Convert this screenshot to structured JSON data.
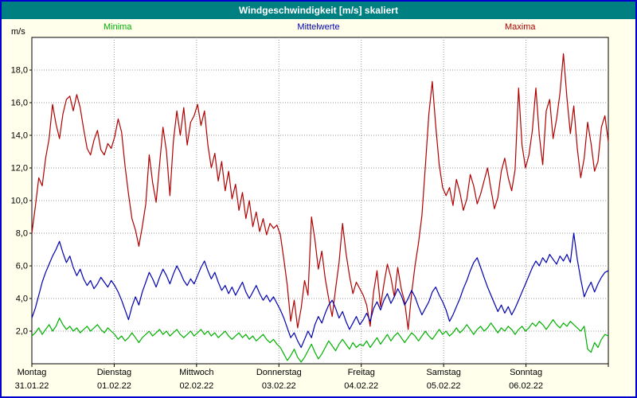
{
  "title": "Windgeschwindigkeit [m/s] skaliert",
  "unit_label": "m/s",
  "legend": [
    {
      "label": "Minima",
      "color": "#00b000"
    },
    {
      "label": "Mittelwerte",
      "color": "#0000b0"
    },
    {
      "label": "Maxima",
      "color": "#b00000"
    }
  ],
  "colors": {
    "titlebar": "#008080",
    "frame_border": "#0000cc",
    "background": "#ffffec",
    "plot_background": "#ffffff",
    "grid": "#9a9a9a",
    "axis": "#000000"
  },
  "chart_data": {
    "type": "line",
    "title": "Windgeschwindigkeit [m/s] skaliert",
    "ylabel": "m/s",
    "xlabel": "",
    "ylim": [
      0,
      20
    ],
    "grid": true,
    "legend_position": "top",
    "y_ticks": {
      "values": [
        2,
        4,
        6,
        8,
        10,
        12,
        14,
        16,
        18
      ],
      "labels": [
        "2,0",
        "4,0",
        "6,0",
        "8,0",
        "10,0",
        "12,0",
        "14,0",
        "16,0",
        "18,0"
      ]
    },
    "x_days": [
      {
        "name": "Montag",
        "date": "31.01.22"
      },
      {
        "name": "Dienstag",
        "date": "01.02.22"
      },
      {
        "name": "Mittwoch",
        "date": "02.02.22"
      },
      {
        "name": "Donnerstag",
        "date": "03.02.22"
      },
      {
        "name": "Freitag",
        "date": "04.02.22"
      },
      {
        "name": "Samstag",
        "date": "05.02.22"
      },
      {
        "name": "Sonntag",
        "date": "06.02.22"
      }
    ],
    "points_per_day": 24,
    "series": [
      {
        "name": "Maxima",
        "color": "#b00000",
        "values": [
          8.0,
          9.6,
          11.4,
          10.9,
          12.6,
          13.8,
          15.9,
          14.7,
          13.8,
          15.3,
          16.2,
          16.4,
          15.5,
          16.5,
          15.7,
          14.4,
          13.2,
          12.8,
          13.7,
          14.3,
          13.1,
          12.8,
          13.5,
          13.2,
          13.9,
          15.0,
          14.2,
          12.1,
          10.4,
          8.9,
          8.2,
          7.2,
          8.4,
          9.8,
          12.8,
          11.1,
          9.9,
          12.2,
          14.5,
          13.0,
          10.3,
          13.6,
          15.5,
          14.0,
          15.7,
          13.4,
          14.8,
          15.2,
          15.9,
          14.6,
          15.5,
          13.4,
          12.0,
          12.9,
          11.2,
          12.4,
          10.6,
          11.8,
          10.1,
          11.0,
          9.4,
          10.5,
          8.9,
          10.0,
          8.4,
          9.3,
          8.1,
          8.9,
          7.9,
          8.6,
          8.3,
          8.5,
          7.9,
          6.4,
          4.8,
          2.6,
          3.9,
          2.2,
          3.4,
          5.1,
          4.2,
          9.0,
          7.6,
          5.8,
          6.9,
          5.2,
          4.0,
          2.9,
          4.6,
          6.2,
          8.6,
          6.8,
          5.4,
          4.3,
          5.0,
          4.6,
          4.2,
          3.6,
          2.3,
          4.4,
          5.7,
          3.5,
          4.9,
          6.1,
          5.3,
          4.1,
          5.9,
          4.6,
          3.8,
          2.1,
          4.3,
          6.0,
          7.4,
          9.1,
          12.1,
          15.3,
          17.3,
          14.6,
          12.2,
          10.8,
          10.3,
          10.8,
          9.7,
          11.3,
          10.5,
          9.4,
          10.1,
          11.6,
          10.9,
          9.8,
          10.4,
          11.2,
          12.0,
          10.7,
          9.5,
          10.2,
          11.8,
          12.6,
          11.4,
          10.6,
          11.9,
          16.9,
          13.4,
          12.0,
          12.8,
          14.3,
          16.9,
          14.0,
          12.2,
          15.5,
          16.2,
          13.8,
          15.0,
          16.6,
          19.0,
          16.3,
          14.1,
          15.8,
          13.2,
          11.4,
          12.6,
          14.8,
          13.5,
          11.8,
          12.4,
          14.5,
          15.2,
          13.6
        ]
      },
      {
        "name": "Mittelwerte",
        "color": "#0000b0",
        "values": [
          2.8,
          3.4,
          4.2,
          5.0,
          5.6,
          6.1,
          6.6,
          7.0,
          7.5,
          6.8,
          6.2,
          6.6,
          5.9,
          5.4,
          5.8,
          5.2,
          4.8,
          5.1,
          4.6,
          4.9,
          5.3,
          5.0,
          4.7,
          5.1,
          4.8,
          4.4,
          3.9,
          3.3,
          2.7,
          3.5,
          4.1,
          3.6,
          4.4,
          5.0,
          5.6,
          5.2,
          4.7,
          5.3,
          5.8,
          5.4,
          4.9,
          5.5,
          6.0,
          5.6,
          5.1,
          4.8,
          5.2,
          4.9,
          5.4,
          5.9,
          6.3,
          5.7,
          5.2,
          5.6,
          5.0,
          4.5,
          4.8,
          4.3,
          4.7,
          4.2,
          4.6,
          5.0,
          4.4,
          4.0,
          4.4,
          4.8,
          4.3,
          3.9,
          4.2,
          3.8,
          4.1,
          3.7,
          3.3,
          2.8,
          2.2,
          1.6,
          1.9,
          1.4,
          1.0,
          1.5,
          2.0,
          1.6,
          2.4,
          2.9,
          2.5,
          3.1,
          3.6,
          3.9,
          3.4,
          2.8,
          3.2,
          2.6,
          2.1,
          2.5,
          2.9,
          2.4,
          2.7,
          3.1,
          2.6,
          3.4,
          3.8,
          3.3,
          3.9,
          4.3,
          3.7,
          4.1,
          4.6,
          4.2,
          3.6,
          4.0,
          4.5,
          4.1,
          3.5,
          3.0,
          3.4,
          3.8,
          4.4,
          4.7,
          4.2,
          3.8,
          3.3,
          2.6,
          3.0,
          3.5,
          4.0,
          4.6,
          5.1,
          5.7,
          6.2,
          6.5,
          5.9,
          5.3,
          4.7,
          4.2,
          3.7,
          3.2,
          3.6,
          3.1,
          3.5,
          3.0,
          3.4,
          3.9,
          4.4,
          4.9,
          5.4,
          5.9,
          6.3,
          6.0,
          6.5,
          6.2,
          6.7,
          6.4,
          6.1,
          6.6,
          6.3,
          6.7,
          6.2,
          8.0,
          6.4,
          5.2,
          4.1,
          4.6,
          5.0,
          4.4,
          4.9,
          5.3,
          5.6,
          5.7
        ]
      },
      {
        "name": "Minima",
        "color": "#00b000",
        "values": [
          1.7,
          1.9,
          2.2,
          1.8,
          2.1,
          2.4,
          2.0,
          2.3,
          2.8,
          2.4,
          2.1,
          2.3,
          2.0,
          2.2,
          1.9,
          2.1,
          2.3,
          2.0,
          2.2,
          2.4,
          2.1,
          1.9,
          2.2,
          2.0,
          1.8,
          1.5,
          1.7,
          1.4,
          1.6,
          1.9,
          1.6,
          1.3,
          1.6,
          1.8,
          2.0,
          1.7,
          1.9,
          2.1,
          1.8,
          2.0,
          1.7,
          1.9,
          2.1,
          1.8,
          1.6,
          1.8,
          2.0,
          1.7,
          1.9,
          2.1,
          1.8,
          2.0,
          1.7,
          1.9,
          1.6,
          1.8,
          2.0,
          1.7,
          1.5,
          1.7,
          1.9,
          1.6,
          1.8,
          1.5,
          1.7,
          1.4,
          1.6,
          1.8,
          1.5,
          1.3,
          1.5,
          1.2,
          1.0,
          0.6,
          0.2,
          0.5,
          0.9,
          0.4,
          0.1,
          0.4,
          0.8,
          1.2,
          0.7,
          0.3,
          0.6,
          1.0,
          1.4,
          1.1,
          0.8,
          1.2,
          1.5,
          1.2,
          0.9,
          1.3,
          1.0,
          1.2,
          1.1,
          1.4,
          1.0,
          1.3,
          1.6,
          1.2,
          1.5,
          1.8,
          1.4,
          1.7,
          1.9,
          1.6,
          1.3,
          1.6,
          1.9,
          1.7,
          1.4,
          1.7,
          2.0,
          1.7,
          1.5,
          1.8,
          2.1,
          1.8,
          2.0,
          1.7,
          1.9,
          2.2,
          1.9,
          2.1,
          2.4,
          2.1,
          1.8,
          2.1,
          2.3,
          2.0,
          2.2,
          2.5,
          2.2,
          1.9,
          2.2,
          2.0,
          2.3,
          2.1,
          1.8,
          2.1,
          2.3,
          2.0,
          2.2,
          2.5,
          2.3,
          2.6,
          2.4,
          2.1,
          2.4,
          2.7,
          2.4,
          2.2,
          2.5,
          2.3,
          2.6,
          2.4,
          2.2,
          2.0,
          2.3,
          0.9,
          0.7,
          1.3,
          1.0,
          1.5,
          1.8,
          1.7
        ]
      }
    ]
  }
}
